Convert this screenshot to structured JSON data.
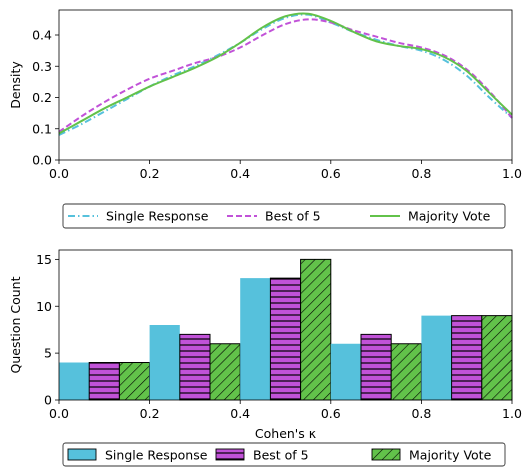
{
  "colors": {
    "single": "#56c1dc",
    "best": "#c152d8",
    "majority": "#62c24a"
  },
  "chart_data": [
    {
      "type": "line",
      "title": "",
      "xlabel": "",
      "ylabel": "Density",
      "xlim": [
        0.0,
        1.0
      ],
      "ylim": [
        0.0,
        0.48
      ],
      "x_ticks": [
        "0.0",
        "0.2",
        "0.4",
        "0.6",
        "0.8",
        "1.0"
      ],
      "y_ticks": [
        "0.0",
        "0.1",
        "0.2",
        "0.3",
        "0.4"
      ],
      "x": [
        0.0,
        0.05,
        0.1,
        0.15,
        0.2,
        0.25,
        0.3,
        0.35,
        0.4,
        0.45,
        0.5,
        0.55,
        0.6,
        0.65,
        0.7,
        0.75,
        0.8,
        0.85,
        0.9,
        0.95,
        1.0
      ],
      "series": [
        {
          "name": "Single Response",
          "style": "dashdot",
          "values": [
            0.08,
            0.115,
            0.155,
            0.195,
            0.235,
            0.27,
            0.3,
            0.335,
            0.375,
            0.42,
            0.455,
            0.465,
            0.44,
            0.41,
            0.385,
            0.365,
            0.35,
            0.32,
            0.27,
            0.2,
            0.135
          ]
        },
        {
          "name": "Best of 5",
          "style": "dashed",
          "values": [
            0.09,
            0.14,
            0.185,
            0.225,
            0.26,
            0.285,
            0.31,
            0.33,
            0.36,
            0.4,
            0.435,
            0.45,
            0.44,
            0.415,
            0.395,
            0.375,
            0.36,
            0.335,
            0.29,
            0.22,
            0.135
          ]
        },
        {
          "name": "Majority Vote",
          "style": "solid",
          "values": [
            0.085,
            0.125,
            0.165,
            0.2,
            0.235,
            0.265,
            0.295,
            0.33,
            0.375,
            0.425,
            0.46,
            0.468,
            0.445,
            0.41,
            0.38,
            0.365,
            0.355,
            0.33,
            0.285,
            0.215,
            0.145
          ]
        }
      ],
      "legend": {
        "placement": "below",
        "entries": [
          "Single Response",
          "Best of 5",
          "Majority Vote"
        ]
      }
    },
    {
      "type": "bar",
      "title": "",
      "xlabel": "Cohen's κ",
      "ylabel": "Question Count",
      "xlim": [
        0.0,
        1.0
      ],
      "ylim": [
        0,
        16
      ],
      "x_ticks": [
        "0.0",
        "0.2",
        "0.4",
        "0.6",
        "0.8",
        "1.0"
      ],
      "y_ticks": [
        "0",
        "5",
        "10",
        "15"
      ],
      "bins": [
        [
          0.0,
          0.2
        ],
        [
          0.2,
          0.4
        ],
        [
          0.4,
          0.6
        ],
        [
          0.6,
          0.8
        ],
        [
          0.8,
          1.0
        ]
      ],
      "series": [
        {
          "name": "Single Response",
          "hatch": "none",
          "values": [
            4,
            8,
            13,
            6,
            9
          ]
        },
        {
          "name": "Best of 5",
          "hatch": "horizontal",
          "values": [
            4,
            7,
            13,
            7,
            9
          ]
        },
        {
          "name": "Majority Vote",
          "hatch": "diagonal",
          "values": [
            4,
            6,
            15,
            6,
            9
          ]
        }
      ],
      "legend": {
        "placement": "below",
        "entries": [
          "Single Response",
          "Best of 5",
          "Majority Vote"
        ]
      }
    }
  ]
}
